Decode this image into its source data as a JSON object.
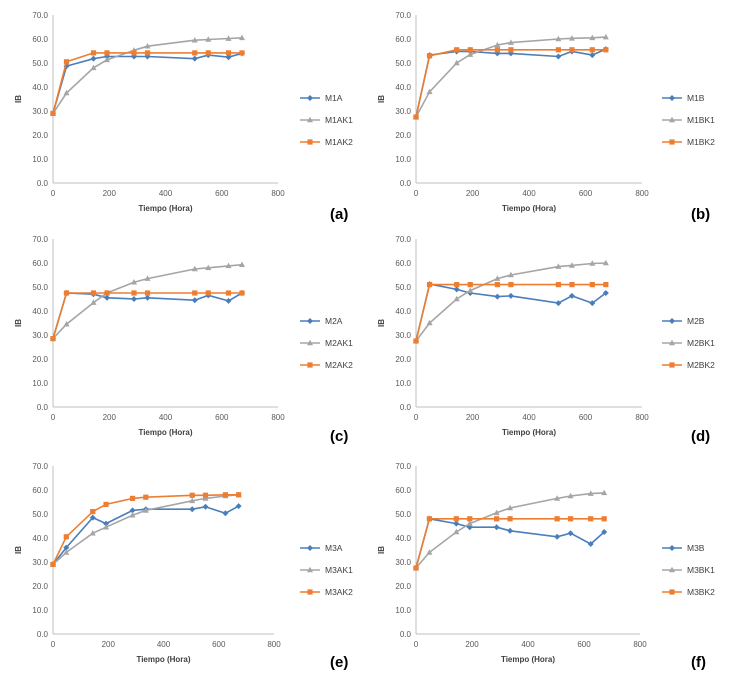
{
  "chart_data": [
    {
      "type": "line",
      "label": "(a)",
      "xlabel": "Tiempo (Hora)",
      "ylabel": "IB",
      "xlim": [
        0,
        800
      ],
      "ylim": [
        0,
        70
      ],
      "xticks": [
        "0",
        "200",
        "400",
        "600",
        "800"
      ],
      "yticks": [
        "0.0",
        "10.0",
        "20.0",
        "30.0",
        "40.0",
        "50.0",
        "60.0",
        "70.0"
      ],
      "series": [
        {
          "name": "M1A",
          "color": "#4a7ebb",
          "marker": "diamond",
          "x": [
            0,
            48,
            144,
            192,
            288,
            336,
            504,
            552,
            624,
            672
          ],
          "y": [
            29,
            48.7,
            51.8,
            52.7,
            52.7,
            52.7,
            51.8,
            53.3,
            52.4,
            54
          ]
        },
        {
          "name": "M1AK1",
          "color": "#a5a5a5",
          "marker": "triangle",
          "x": [
            0,
            48,
            144,
            192,
            288,
            336,
            504,
            552,
            624,
            672
          ],
          "y": [
            29,
            37.5,
            48,
            51.3,
            55.3,
            57,
            59.5,
            59.8,
            60.2,
            60.5
          ]
        },
        {
          "name": "M1AK2",
          "color": "#ed7d31",
          "marker": "square",
          "x": [
            0,
            48,
            144,
            192,
            288,
            336,
            504,
            552,
            624,
            672
          ],
          "y": [
            29,
            50.5,
            54.2,
            54.2,
            54.2,
            54.2,
            54.2,
            54.2,
            54.2,
            54.2
          ]
        }
      ]
    },
    {
      "type": "line",
      "label": "(b)",
      "xlabel": "Tiempo (Hora)",
      "ylabel": "IB",
      "xlim": [
        0,
        800
      ],
      "ylim": [
        0,
        70
      ],
      "xticks": [
        "0",
        "200",
        "400",
        "600",
        "800"
      ],
      "yticks": [
        "0.0",
        "10.0",
        "20.0",
        "30.0",
        "40.0",
        "50.0",
        "60.0",
        "70.0"
      ],
      "series": [
        {
          "name": "M1B",
          "color": "#4a7ebb",
          "marker": "diamond",
          "x": [
            0,
            48,
            144,
            192,
            288,
            336,
            504,
            552,
            624,
            672
          ],
          "y": [
            27.5,
            53.3,
            54.8,
            54.8,
            54,
            54,
            52.7,
            54.8,
            53.3,
            55.8
          ]
        },
        {
          "name": "M1BK1",
          "color": "#a5a5a5",
          "marker": "triangle",
          "x": [
            0,
            48,
            144,
            192,
            288,
            336,
            504,
            552,
            624,
            672
          ],
          "y": [
            27.5,
            38,
            50,
            53.5,
            57.5,
            58.5,
            60,
            60.3,
            60.5,
            60.8
          ]
        },
        {
          "name": "M1BK2",
          "color": "#ed7d31",
          "marker": "square",
          "x": [
            0,
            48,
            144,
            192,
            288,
            336,
            504,
            552,
            624,
            672
          ],
          "y": [
            27.5,
            53,
            55.5,
            55.5,
            55.5,
            55.5,
            55.5,
            55.5,
            55.5,
            55.5
          ]
        }
      ]
    },
    {
      "type": "line",
      "label": "(c)",
      "xlabel": "Tiempo (Hora)",
      "ylabel": "IB",
      "xlim": [
        0,
        800
      ],
      "ylim": [
        0,
        70
      ],
      "xticks": [
        "0",
        "200",
        "400",
        "600",
        "800"
      ],
      "yticks": [
        "0.0",
        "10.0",
        "20.0",
        "30.0",
        "40.0",
        "50.0",
        "60.0",
        "70.0"
      ],
      "series": [
        {
          "name": "M2A",
          "color": "#4a7ebb",
          "marker": "diamond",
          "x": [
            0,
            48,
            144,
            192,
            288,
            336,
            504,
            552,
            624,
            672
          ],
          "y": [
            28.5,
            47.5,
            47,
            45.5,
            45,
            45.5,
            44.5,
            46.5,
            44.2,
            47.5
          ]
        },
        {
          "name": "M2AK1",
          "color": "#a5a5a5",
          "marker": "triangle",
          "x": [
            0,
            48,
            144,
            192,
            288,
            336,
            504,
            552,
            624,
            672
          ],
          "y": [
            28.5,
            34.5,
            43.5,
            47.5,
            52,
            53.5,
            57.5,
            58,
            58.8,
            59.3
          ]
        },
        {
          "name": "M2AK2",
          "color": "#ed7d31",
          "marker": "square",
          "x": [
            0,
            48,
            144,
            192,
            288,
            336,
            504,
            552,
            624,
            672
          ],
          "y": [
            28.5,
            47.5,
            47.5,
            47.5,
            47.5,
            47.5,
            47.5,
            47.5,
            47.5,
            47.5
          ]
        }
      ]
    },
    {
      "type": "line",
      "label": "(d)",
      "xlabel": "Tiempo (Hora)",
      "ylabel": "IB",
      "xlim": [
        0,
        800
      ],
      "ylim": [
        0,
        70
      ],
      "xticks": [
        "0",
        "200",
        "400",
        "600",
        "800"
      ],
      "yticks": [
        "0.0",
        "10.0",
        "20.0",
        "30.0",
        "40.0",
        "50.0",
        "60.0",
        "70.0"
      ],
      "series": [
        {
          "name": "M2B",
          "color": "#4a7ebb",
          "marker": "diamond",
          "x": [
            0,
            48,
            144,
            192,
            288,
            336,
            504,
            552,
            624,
            672
          ],
          "y": [
            27.5,
            51.2,
            49,
            47.5,
            46,
            46.3,
            43.3,
            46.3,
            43.3,
            47.5
          ]
        },
        {
          "name": "M2BK1",
          "color": "#a5a5a5",
          "marker": "triangle",
          "x": [
            0,
            48,
            144,
            192,
            288,
            336,
            504,
            552,
            624,
            672
          ],
          "y": [
            27.5,
            35,
            45,
            48.5,
            53.5,
            55,
            58.5,
            59,
            59.8,
            60
          ]
        },
        {
          "name": "M2BK2",
          "color": "#ed7d31",
          "marker": "square",
          "x": [
            0,
            48,
            144,
            192,
            288,
            336,
            504,
            552,
            624,
            672
          ],
          "y": [
            27.5,
            51,
            51,
            51,
            51,
            51,
            51,
            51,
            51,
            51
          ]
        }
      ]
    },
    {
      "type": "line",
      "label": "(e)",
      "xlabel": "Tiempo (Hora)",
      "ylabel": "IB",
      "xlim": [
        0,
        800
      ],
      "ylim": [
        0,
        70
      ],
      "xticks": [
        "0",
        "200",
        "400",
        "600",
        "800"
      ],
      "yticks": [
        "0.0",
        "10.0",
        "20.0",
        "30.0",
        "40.0",
        "50.0",
        "60.0",
        "70.0"
      ],
      "series": [
        {
          "name": "M3A",
          "color": "#4a7ebb",
          "marker": "diamond",
          "x": [
            0,
            48,
            144,
            192,
            288,
            336,
            504,
            552,
            624,
            672
          ],
          "y": [
            29,
            36,
            48.5,
            46,
            51.5,
            52,
            52,
            53,
            50.3,
            53.3
          ]
        },
        {
          "name": "M3AK1",
          "color": "#a5a5a5",
          "marker": "triangle",
          "x": [
            0,
            48,
            144,
            192,
            288,
            336,
            504,
            552,
            624,
            672
          ],
          "y": [
            29,
            34,
            42,
            44.5,
            49.5,
            51.5,
            55.5,
            56.5,
            57.5,
            58
          ]
        },
        {
          "name": "M3AK2",
          "color": "#ed7d31",
          "marker": "square",
          "x": [
            0,
            48,
            144,
            192,
            288,
            336,
            504,
            552,
            624,
            672
          ],
          "y": [
            29,
            40.5,
            51,
            54,
            56.5,
            57,
            57.8,
            57.8,
            58,
            58
          ]
        }
      ]
    },
    {
      "type": "line",
      "label": "(f)",
      "xlabel": "Tiempo (Hora)",
      "ylabel": "IB",
      "xlim": [
        0,
        800
      ],
      "ylim": [
        0,
        70
      ],
      "xticks": [
        "0",
        "200",
        "400",
        "600",
        "800"
      ],
      "yticks": [
        "0.0",
        "10.0",
        "20.0",
        "30.0",
        "40.0",
        "50.0",
        "60.0",
        "70.0"
      ],
      "series": [
        {
          "name": "M3B",
          "color": "#4a7ebb",
          "marker": "diamond",
          "x": [
            0,
            48,
            144,
            192,
            288,
            336,
            504,
            552,
            624,
            672
          ],
          "y": [
            27.5,
            48,
            46,
            44.5,
            44.5,
            43,
            40.5,
            42,
            37.5,
            42.5
          ]
        },
        {
          "name": "M3BK1",
          "color": "#a5a5a5",
          "marker": "triangle",
          "x": [
            0,
            48,
            144,
            192,
            288,
            336,
            504,
            552,
            624,
            672
          ],
          "y": [
            27.5,
            34,
            42.5,
            46,
            50.5,
            52.5,
            56.5,
            57.5,
            58.5,
            58.8
          ]
        },
        {
          "name": "M3BK2",
          "color": "#ed7d31",
          "marker": "square",
          "x": [
            0,
            48,
            144,
            192,
            288,
            336,
            504,
            552,
            624,
            672
          ],
          "y": [
            27.5,
            48,
            48,
            48,
            48,
            48,
            48,
            48,
            48,
            48
          ]
        }
      ]
    }
  ]
}
